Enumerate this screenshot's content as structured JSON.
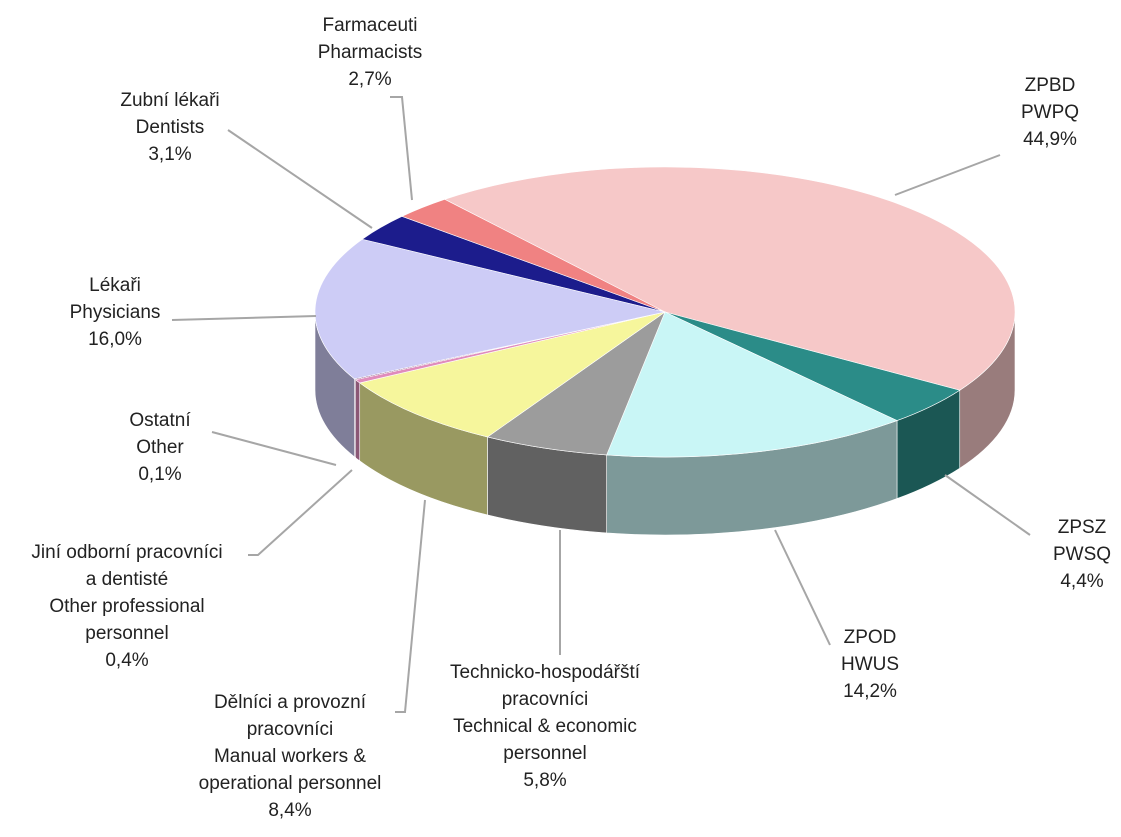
{
  "chart_data": {
    "type": "pie3d",
    "categories": [
      "ZPBD\nPWPQ",
      "ZPSZ\nPWSQ",
      "ZPOD\nHWUS",
      "Technicko-hospodářští\npracovníci\nTechnical & economic\npersonnel",
      "Dělníci a provozní\npracovníci\nManual workers &\noperational personnel",
      "Jiní odborní pracovníci\na dentisté\nOther professional\npersonnel",
      "Ostatní\nOther",
      "Lékaři\nPhysicians",
      "Zubní lékaři\nDentists",
      "Farmaceuti\nPharmacists"
    ],
    "values": [
      44.9,
      4.4,
      14.2,
      5.8,
      8.4,
      0.4,
      0.1,
      16.0,
      3.1,
      2.7
    ],
    "value_labels": [
      "44,9%",
      "4,4%",
      "14,2%",
      "5,8%",
      "8,4%",
      "0,4%",
      "0,1%",
      "16,0%",
      "3,1%",
      "2,7%"
    ],
    "colors": [
      "#f6c8c8",
      "#2b8c88",
      "#c9f6f6",
      "#9c9c9c",
      "#f6f69c",
      "#e08cbc",
      "#5a0a4a",
      "#cdccf6",
      "#1c1c8c",
      "#f08282"
    ]
  }
}
